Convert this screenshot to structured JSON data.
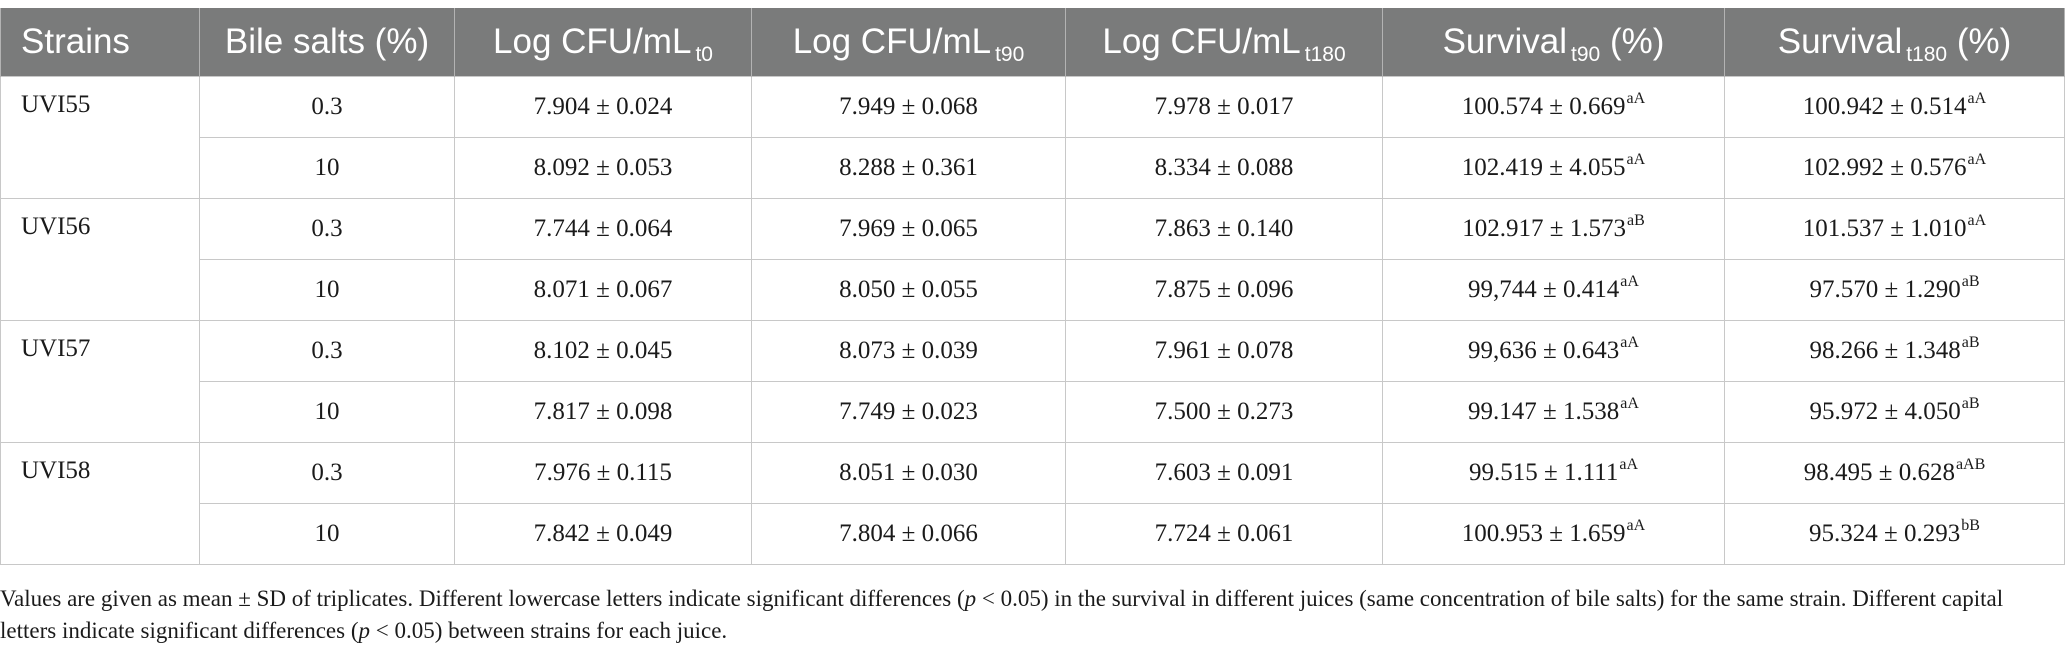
{
  "header": {
    "strains": "Strains",
    "bile_salts": "Bile salts (%)",
    "log_t0": {
      "main": "Log CFU/mL",
      "sub": "t0"
    },
    "log_t90": {
      "main": "Log CFU/mL",
      "sub": "t90"
    },
    "log_t180": {
      "main": "Log CFU/mL",
      "sub": "t180"
    },
    "surv_t90": {
      "main": "Survival",
      "sub": "t90",
      "unit": "(%)"
    },
    "surv_t180": {
      "main": "Survival",
      "sub": "t180",
      "unit": "(%)"
    }
  },
  "rows": [
    {
      "strain": "UVI55",
      "bile": "0.3",
      "t0": "7.904 ± 0.024",
      "t90": "7.949 ± 0.068",
      "t180": "7.978 ± 0.017",
      "s90": "100.574 ± 0.669",
      "s90_sig": "aA",
      "s180": "100.942 ± 0.514",
      "s180_sig": "aA"
    },
    {
      "strain": "",
      "bile": "10",
      "t0": "8.092 ± 0.053",
      "t90": "8.288 ± 0.361",
      "t180": "8.334 ± 0.088",
      "s90": "102.419 ± 4.055",
      "s90_sig": "aA",
      "s180": "102.992 ± 0.576",
      "s180_sig": "aA"
    },
    {
      "strain": "UVI56",
      "bile": "0.3",
      "t0": "7.744 ± 0.064",
      "t90": "7.969 ± 0.065",
      "t180": "7.863 ± 0.140",
      "s90": "102.917 ± 1.573",
      "s90_sig": "aB",
      "s180": "101.537 ± 1.010",
      "s180_sig": "aA"
    },
    {
      "strain": "",
      "bile": "10",
      "t0": "8.071 ± 0.067",
      "t90": "8.050 ± 0.055",
      "t180": "7.875 ± 0.096",
      "s90": "99,744 ± 0.414",
      "s90_sig": "aA",
      "s180": "97.570 ± 1.290",
      "s180_sig": "aB"
    },
    {
      "strain": "UVI57",
      "bile": "0.3",
      "t0": "8.102 ± 0.045",
      "t90": "8.073 ± 0.039",
      "t180": "7.961 ± 0.078",
      "s90": "99,636 ± 0.643",
      "s90_sig": "aA",
      "s180": "98.266 ± 1.348",
      "s180_sig": "aB"
    },
    {
      "strain": "",
      "bile": "10",
      "t0": "7.817 ± 0.098",
      "t90": "7.749 ± 0.023",
      "t180": "7.500 ± 0.273",
      "s90": "99.147 ± 1.538",
      "s90_sig": "aA",
      "s180": "95.972 ± 4.050",
      "s180_sig": "aB"
    },
    {
      "strain": "UVI58",
      "bile": "0.3",
      "t0": "7.976 ± 0.115",
      "t90": "8.051 ± 0.030",
      "t180": "7.603 ± 0.091",
      "s90": "99.515 ± 1.111",
      "s90_sig": "aA",
      "s180": "98.495 ± 0.628",
      "s180_sig": "aAB"
    },
    {
      "strain": "",
      "bile": "10",
      "t0": "7.842 ± 0.049",
      "t90": "7.804 ± 0.066",
      "t180": "7.724 ± 0.061",
      "s90": "100.953 ± 1.659",
      "s90_sig": "aA",
      "s180": "95.324 ± 0.293",
      "s180_sig": "bB"
    }
  ],
  "footnote": {
    "part1": "Values are given as mean ± SD of triplicates. Different lowercase letters indicate significant differences (",
    "p1": "p",
    "part2": " < 0.05) in the survival in different juices (same concentration of bile salts) for the same strain. Different capital letters indicate significant differences (",
    "p2": "p",
    "part3": " < 0.05) between strains for each juice."
  },
  "colors": {
    "header_bg": "#7a7b7b",
    "header_text": "#ffffff",
    "grid": "#c8c8c8"
  }
}
